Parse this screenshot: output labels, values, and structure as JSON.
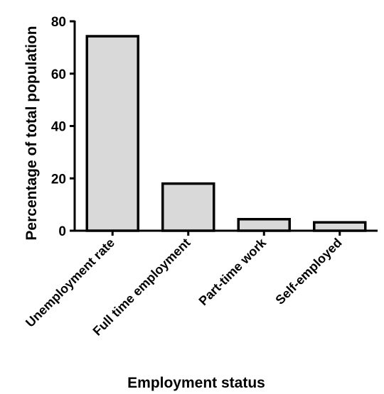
{
  "chart_data": {
    "type": "bar",
    "categories": [
      "Unemployment rate",
      "Full time employment",
      "Part-time work",
      "Self-employed"
    ],
    "values": [
      74.3,
      18.0,
      4.4,
      3.2
    ],
    "xlabel": "Employment status",
    "ylabel": "Percentage of total population",
    "ylim": [
      0,
      80
    ],
    "yticks": [
      0,
      20,
      40,
      60,
      80
    ],
    "grid": false,
    "bar_fill": "#d9d9d9",
    "bar_stroke": "#000000"
  }
}
